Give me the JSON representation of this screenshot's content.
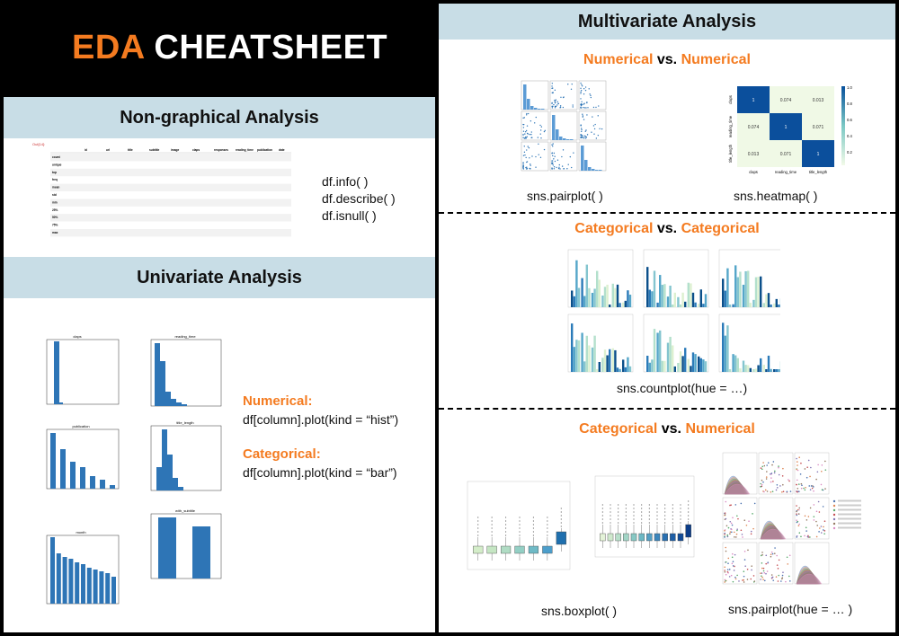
{
  "title": {
    "accent": "EDA",
    "rest": " CHEATSHEET"
  },
  "nongraphical": {
    "heading": "Non-graphical Analysis",
    "commands": [
      "df.info( )",
      "df.describe( )",
      "df.isnull( )"
    ],
    "table_headers": [
      "id",
      "url",
      "title",
      "subtitle",
      "image",
      "claps",
      "responses",
      "reading_time",
      "publication",
      "date"
    ],
    "table_rows": [
      "count",
      "unique",
      "top",
      "freq",
      "mean",
      "std",
      "min",
      "25%",
      "50%",
      "75%",
      "max"
    ]
  },
  "univariate": {
    "heading": "Univariate Analysis",
    "numerical_label": "Numerical:",
    "numerical_code": "df[column].plot(kind = “hist”)",
    "categorical_label": "Categorical:",
    "categorical_code": "df[column].plot(kind = “bar”)",
    "plot_titles": [
      "claps",
      "reading_time",
      "publication",
      "title_length",
      "month",
      "with_subtitle"
    ]
  },
  "multivariate": {
    "heading": "Multivariate Analysis",
    "num_num": {
      "a": "Numerical",
      "vs": " vs. ",
      "b": "Numerical"
    },
    "pairplot": "sns.pairplot( )",
    "heatmap": "sns.heatmap( )",
    "heatmap_values": [
      [
        "1",
        "0.074",
        "0.013"
      ],
      [
        "0.074",
        "1",
        "0.071"
      ],
      [
        "0.013",
        "0.071",
        "1"
      ]
    ],
    "heatmap_labels": [
      "claps",
      "reading_time",
      "title_length"
    ],
    "colorbar_ticks": [
      "1.0",
      "0.8",
      "0.6",
      "0.4",
      "0.2"
    ],
    "cat_cat": {
      "a": "Categorical",
      "vs": " vs. ",
      "b": "Categorical"
    },
    "countplot": "sns.countplot(hue = …)",
    "cat_num": {
      "a": "Categorical",
      "vs": " vs. ",
      "b": "Numerical"
    },
    "boxplot": "sns.boxplot( )",
    "pairplot_hue": "sns.pairplot(hue = … )"
  },
  "colors": {
    "accent": "#f47b20",
    "band": "#c8dde6",
    "plot_blue": "#2e75b6"
  }
}
